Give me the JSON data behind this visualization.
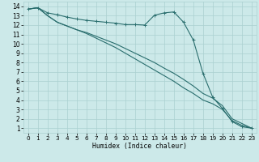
{
  "xlabel": "Humidex (Indice chaleur)",
  "bg_color": "#cce9e9",
  "line_color": "#2a6e6e",
  "grid_color": "#aad0d0",
  "xlim": [
    -0.5,
    23.5
  ],
  "ylim": [
    0.5,
    14.5
  ],
  "xticks": [
    0,
    1,
    2,
    3,
    4,
    5,
    6,
    7,
    8,
    9,
    10,
    11,
    12,
    13,
    14,
    15,
    16,
    17,
    18,
    19,
    20,
    21,
    22,
    23
  ],
  "yticks": [
    1,
    2,
    3,
    4,
    5,
    6,
    7,
    8,
    9,
    10,
    11,
    12,
    13,
    14
  ],
  "series1_x": [
    0,
    1,
    2,
    3,
    4,
    5,
    6,
    7,
    8,
    9,
    10,
    11,
    12,
    13,
    14,
    15,
    16,
    17,
    18,
    19,
    20,
    21,
    22,
    23
  ],
  "series1_y": [
    13.7,
    13.85,
    13.3,
    13.1,
    12.85,
    12.65,
    12.5,
    12.4,
    12.3,
    12.2,
    12.05,
    12.05,
    12.0,
    13.05,
    13.3,
    13.4,
    12.3,
    10.4,
    6.85,
    4.3,
    3.1,
    1.7,
    1.15,
    1.0
  ],
  "series2_x": [
    0,
    1,
    2,
    3,
    4,
    5,
    6,
    7,
    8,
    9,
    10,
    11,
    12,
    13,
    14,
    15,
    16,
    17,
    18,
    19,
    20,
    21,
    22,
    23
  ],
  "series2_y": [
    13.7,
    13.85,
    13.0,
    12.3,
    11.9,
    11.5,
    11.2,
    10.8,
    10.4,
    10.0,
    9.5,
    9.0,
    8.5,
    8.0,
    7.4,
    6.85,
    6.2,
    5.5,
    4.7,
    4.2,
    3.4,
    2.0,
    1.5,
    1.0
  ],
  "series3_x": [
    0,
    1,
    2,
    3,
    4,
    5,
    6,
    7,
    8,
    9,
    10,
    11,
    12,
    13,
    14,
    15,
    16,
    17,
    18,
    19,
    20,
    21,
    22,
    23
  ],
  "series3_y": [
    13.7,
    13.85,
    13.0,
    12.3,
    11.9,
    11.5,
    11.1,
    10.6,
    10.1,
    9.6,
    9.0,
    8.4,
    7.8,
    7.2,
    6.6,
    6.0,
    5.3,
    4.7,
    4.0,
    3.6,
    3.0,
    1.8,
    1.3,
    1.0
  ]
}
